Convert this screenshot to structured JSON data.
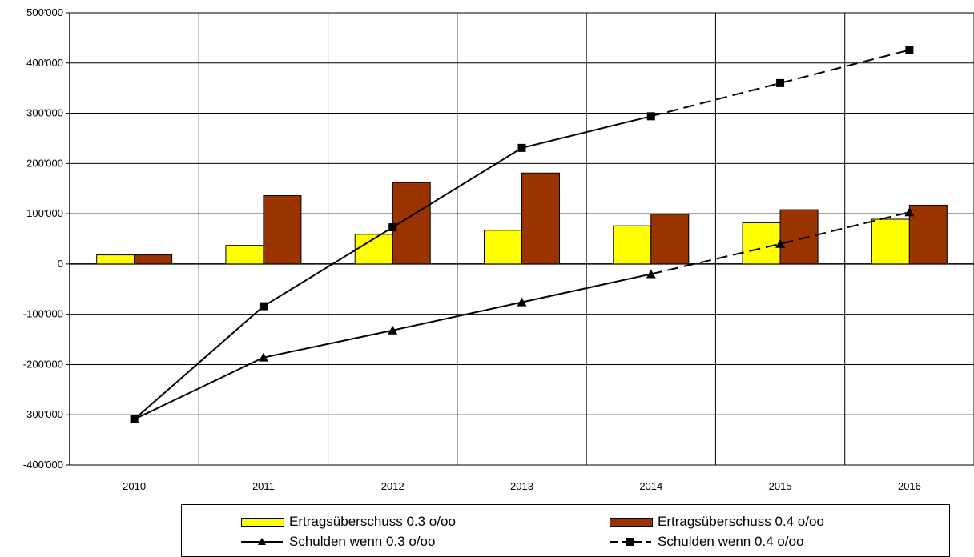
{
  "chart_data": {
    "type": "bar",
    "categories": [
      "2010",
      "2011",
      "2012",
      "2013",
      "2014",
      "2015",
      "2016"
    ],
    "ylim": [
      -400000,
      500000
    ],
    "yticks": [
      500000,
      400000,
      300000,
      200000,
      100000,
      0,
      -100000,
      -200000,
      -300000,
      -400000
    ],
    "ytick_labels": [
      "500'000",
      "400'000",
      "300'000",
      "200'000",
      "100'000",
      "0",
      "-100'000",
      "-200'000",
      "-300'000",
      "-400'000"
    ],
    "grid": true,
    "legend_position": "bottom",
    "series": [
      {
        "name": "Ertragsüberschuss 0.3 o/oo",
        "type": "bar",
        "color": "#ffff00",
        "values": [
          18000,
          37000,
          59000,
          67000,
          76000,
          82000,
          89000
        ]
      },
      {
        "name": "Ertragsüberschuss 0.4 o/oo",
        "type": "bar",
        "color": "#993300",
        "values": [
          18000,
          136000,
          162000,
          181000,
          99000,
          108000,
          117000
        ]
      },
      {
        "name": "Schulden wenn 0.3 o/oo",
        "type": "line",
        "marker": "triangle",
        "color": "#000000",
        "values": [
          -309000,
          -186000,
          -132000,
          -76000,
          -20000,
          40000,
          103000
        ],
        "dashed_from": "2014"
      },
      {
        "name": "Schulden wenn 0.4 o/oo",
        "type": "line",
        "marker": "square",
        "color": "#000000",
        "values": [
          -309000,
          -84000,
          73000,
          231000,
          294000,
          360000,
          426000
        ],
        "dashed_from": "2014"
      }
    ]
  }
}
